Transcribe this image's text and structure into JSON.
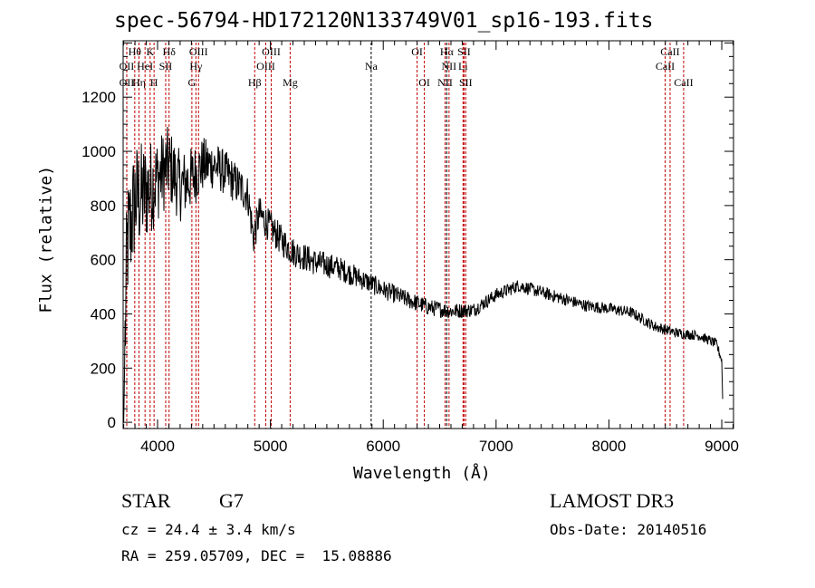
{
  "chart_data": {
    "type": "line",
    "title": "spec-56794-HD172120N133749V01_sp16-193.fits",
    "xlabel": "Wavelength (Å)",
    "ylabel": "Flux (relative)",
    "xlim": [
      3695,
      9104
    ],
    "ylim": [
      -23,
      1408
    ],
    "x_ticks": [
      4000,
      5000,
      6000,
      7000,
      8000,
      9000
    ],
    "y_ticks": [
      0,
      200,
      400,
      600,
      800,
      1000,
      1200
    ],
    "grid": false,
    "series": [
      {
        "name": "spectrum",
        "color": "#000000",
        "continuum": [
          [
            3700,
            0
          ],
          [
            3712,
            300
          ],
          [
            3730,
            650
          ],
          [
            3800,
            820
          ],
          [
            3900,
            850
          ],
          [
            4000,
            900
          ],
          [
            4100,
            950
          ],
          [
            4200,
            870
          ],
          [
            4300,
            900
          ],
          [
            4400,
            950
          ],
          [
            4500,
            950
          ],
          [
            4600,
            920
          ],
          [
            4700,
            880
          ],
          [
            4800,
            840
          ],
          [
            4850,
            680
          ],
          [
            4900,
            770
          ],
          [
            5000,
            720
          ],
          [
            5100,
            670
          ],
          [
            5200,
            630
          ],
          [
            5400,
            590
          ],
          [
            5600,
            570
          ],
          [
            5800,
            530
          ],
          [
            6000,
            490
          ],
          [
            6200,
            455
          ],
          [
            6400,
            425
          ],
          [
            6600,
            410
          ],
          [
            6800,
            415
          ],
          [
            7000,
            470
          ],
          [
            7200,
            505
          ],
          [
            7400,
            480
          ],
          [
            7600,
            455
          ],
          [
            7800,
            430
          ],
          [
            8000,
            420
          ],
          [
            8200,
            405
          ],
          [
            8400,
            355
          ],
          [
            8600,
            330
          ],
          [
            8800,
            320
          ],
          [
            8950,
            290
          ],
          [
            9000,
            230
          ],
          [
            9010,
            50
          ]
        ],
        "noise": [
          [
            3700,
            250
          ],
          [
            4000,
            160
          ],
          [
            4500,
            90
          ],
          [
            5000,
            60
          ],
          [
            6000,
            35
          ],
          [
            7000,
            25
          ],
          [
            9000,
            18
          ]
        ]
      }
    ],
    "lines": [
      {
        "label": "OII",
        "wave": 3727,
        "row": 2,
        "color": "#c00000"
      },
      {
        "label": "OII",
        "wave": 3727,
        "row": 3,
        "color": "#c00000"
      },
      {
        "label": "Hθ",
        "wave": 3798,
        "row": 1,
        "color": "#c00000"
      },
      {
        "label": "Hη",
        "wave": 3835,
        "row": 3,
        "color": "#c00000"
      },
      {
        "label": "HeI",
        "wave": 3889,
        "row": 2,
        "color": "#c00000"
      },
      {
        "label": "K",
        "wave": 3934,
        "row": 1,
        "color": "#c00000"
      },
      {
        "label": "H",
        "wave": 3969,
        "row": 3,
        "color": "#c00000"
      },
      {
        "label": "SII",
        "wave": 4072,
        "row": 2,
        "color": "#c00000"
      },
      {
        "label": "Hδ",
        "wave": 4102,
        "row": 1,
        "color": "#c00000"
      },
      {
        "label": "G",
        "wave": 4304,
        "row": 3,
        "color": "#c00000"
      },
      {
        "label": "Hγ",
        "wave": 4340,
        "row": 2,
        "color": "#c00000"
      },
      {
        "label": "OIII",
        "wave": 4363,
        "row": 1,
        "color": "#c00000"
      },
      {
        "label": "Hβ",
        "wave": 4861,
        "row": 3,
        "color": "#c00000"
      },
      {
        "label": "OIII",
        "wave": 4959,
        "row": 2,
        "color": "#c00000"
      },
      {
        "label": "OIII",
        "wave": 5007,
        "row": 1,
        "color": "#c00000"
      },
      {
        "label": "Mg",
        "wave": 5175,
        "row": 3,
        "color": "#c00000"
      },
      {
        "label": "Na",
        "wave": 5893,
        "row": 2,
        "color": "#000000"
      },
      {
        "label": "OI",
        "wave": 6300,
        "row": 1,
        "color": "#c00000"
      },
      {
        "label": "OI",
        "wave": 6364,
        "row": 3,
        "color": "#c00000"
      },
      {
        "label": "NII",
        "wave": 6548,
        "row": 3,
        "color": "#c00000"
      },
      {
        "label": "Hα",
        "wave": 6563,
        "row": 1,
        "color": "#000000"
      },
      {
        "label": "NII",
        "wave": 6583,
        "row": 2,
        "color": "#c00000"
      },
      {
        "label": "Li",
        "wave": 6707,
        "row": 2,
        "color": "#c00000"
      },
      {
        "label": "SII",
        "wave": 6716,
        "row": 1,
        "color": "#c00000"
      },
      {
        "label": "SII",
        "wave": 6731,
        "row": 3,
        "color": "#c00000"
      },
      {
        "label": "CaII",
        "wave": 8498,
        "row": 2,
        "color": "#c00000"
      },
      {
        "label": "CaII",
        "wave": 8542,
        "row": 1,
        "color": "#c00000"
      },
      {
        "label": "CaII",
        "wave": 8662,
        "row": 3,
        "color": "#c00000"
      }
    ]
  },
  "info": {
    "obj_class": "STAR",
    "subclass": "G7",
    "cz": "cz = 24.4 ± 3.4 km/s",
    "radec": "RA = 259.05709, DEC =  15.08886",
    "survey": "LAMOST DR3",
    "obs_date": "Obs-Date: 20140516"
  }
}
